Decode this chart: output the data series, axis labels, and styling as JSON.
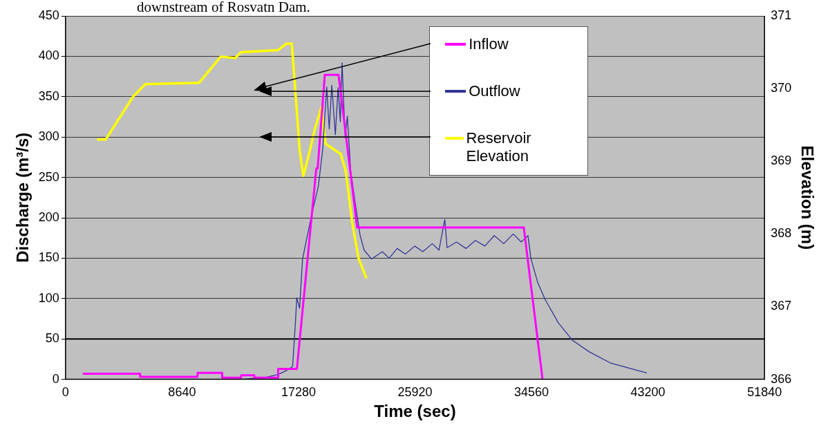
{
  "chart_data": {
    "type": "line",
    "xlabel": "Time (sec)",
    "ylabel": "Discharge (m³/s)",
    "y2label": "Elevation (m)",
    "annotations": [
      "downstream of Rosvatn Dam."
    ],
    "xlim": [
      0,
      51840
    ],
    "xticks": [
      0,
      8640,
      17280,
      25920,
      34560,
      43200,
      51840
    ],
    "ylim": [
      0,
      450
    ],
    "yticks": [
      0,
      50,
      100,
      150,
      200,
      250,
      300,
      350,
      400,
      450
    ],
    "y2lim": [
      366,
      371
    ],
    "y2ticks": [
      366,
      367,
      368,
      369,
      370,
      371
    ],
    "grid": "y",
    "legend": "top right",
    "marker": "none",
    "line_style": "solid",
    "ref_lines": [
      {
        "axis": "y",
        "value": 50,
        "color": "#000000"
      }
    ],
    "series": [
      {
        "name": "Inflow",
        "color": "#ff00ff",
        "x": [
          1280,
          5500,
          5540,
          9780,
          9800,
          11600,
          11620,
          13000,
          13020,
          14000,
          14020,
          15750,
          15770,
          17100,
          17160,
          18600,
          18700,
          19230,
          20250,
          21630,
          33990,
          35380
        ],
        "values": [
          7,
          7,
          3,
          3,
          8,
          8,
          2,
          2,
          5,
          5,
          2,
          2,
          13,
          13,
          13,
          261,
          261,
          377,
          377,
          188,
          188,
          0
        ]
      },
      {
        "name": "Outflow",
        "color": "#333399",
        "x": [
          13000,
          14700,
          15770,
          16500,
          16840,
          17050,
          17150,
          17360,
          17580,
          18220,
          18760,
          19080,
          19370,
          19560,
          19750,
          20010,
          20220,
          20380,
          20510,
          20740,
          20900,
          21150,
          21560,
          21850,
          22150,
          22700,
          23500,
          24000,
          24600,
          25200,
          25900,
          26500,
          27200,
          27700,
          28130,
          28300,
          29000,
          29700,
          30400,
          31100,
          31800,
          32500,
          33200,
          33800,
          34300,
          34510,
          35040,
          35570,
          36550,
          37620,
          38850,
          40440,
          43110
        ],
        "values": [
          0,
          2,
          6,
          12,
          16,
          70,
          101,
          88,
          149,
          201,
          240,
          286,
          362,
          310,
          364,
          303,
          361,
          319,
          392,
          299,
          326,
          258,
          210,
          178,
          160,
          149,
          158,
          150,
          162,
          155,
          165,
          158,
          168,
          160,
          198,
          163,
          170,
          162,
          172,
          165,
          178,
          168,
          180,
          170,
          178,
          150,
          119,
          99,
          70,
          48,
          34,
          20,
          8
        ]
      },
      {
        "name": "Reservoir Elevation",
        "color": "#ffff00",
        "axis": "y2",
        "x": [
          2340,
          2980,
          5010,
          5910,
          9910,
          10180,
          11510,
          12580,
          13000,
          15770,
          16400,
          16780,
          17160,
          17370,
          17640,
          18030,
          18490,
          18970,
          19290,
          20410,
          20780,
          21260,
          21740,
          22320
        ],
        "values": [
          369.3,
          369.3,
          369.89,
          370.06,
          370.08,
          370.14,
          370.44,
          370.42,
          370.5,
          370.53,
          370.62,
          370.62,
          369.68,
          369.14,
          368.8,
          369.08,
          369.44,
          369.74,
          369.24,
          369.1,
          368.87,
          368.16,
          367.66,
          367.39
        ]
      }
    ]
  }
}
